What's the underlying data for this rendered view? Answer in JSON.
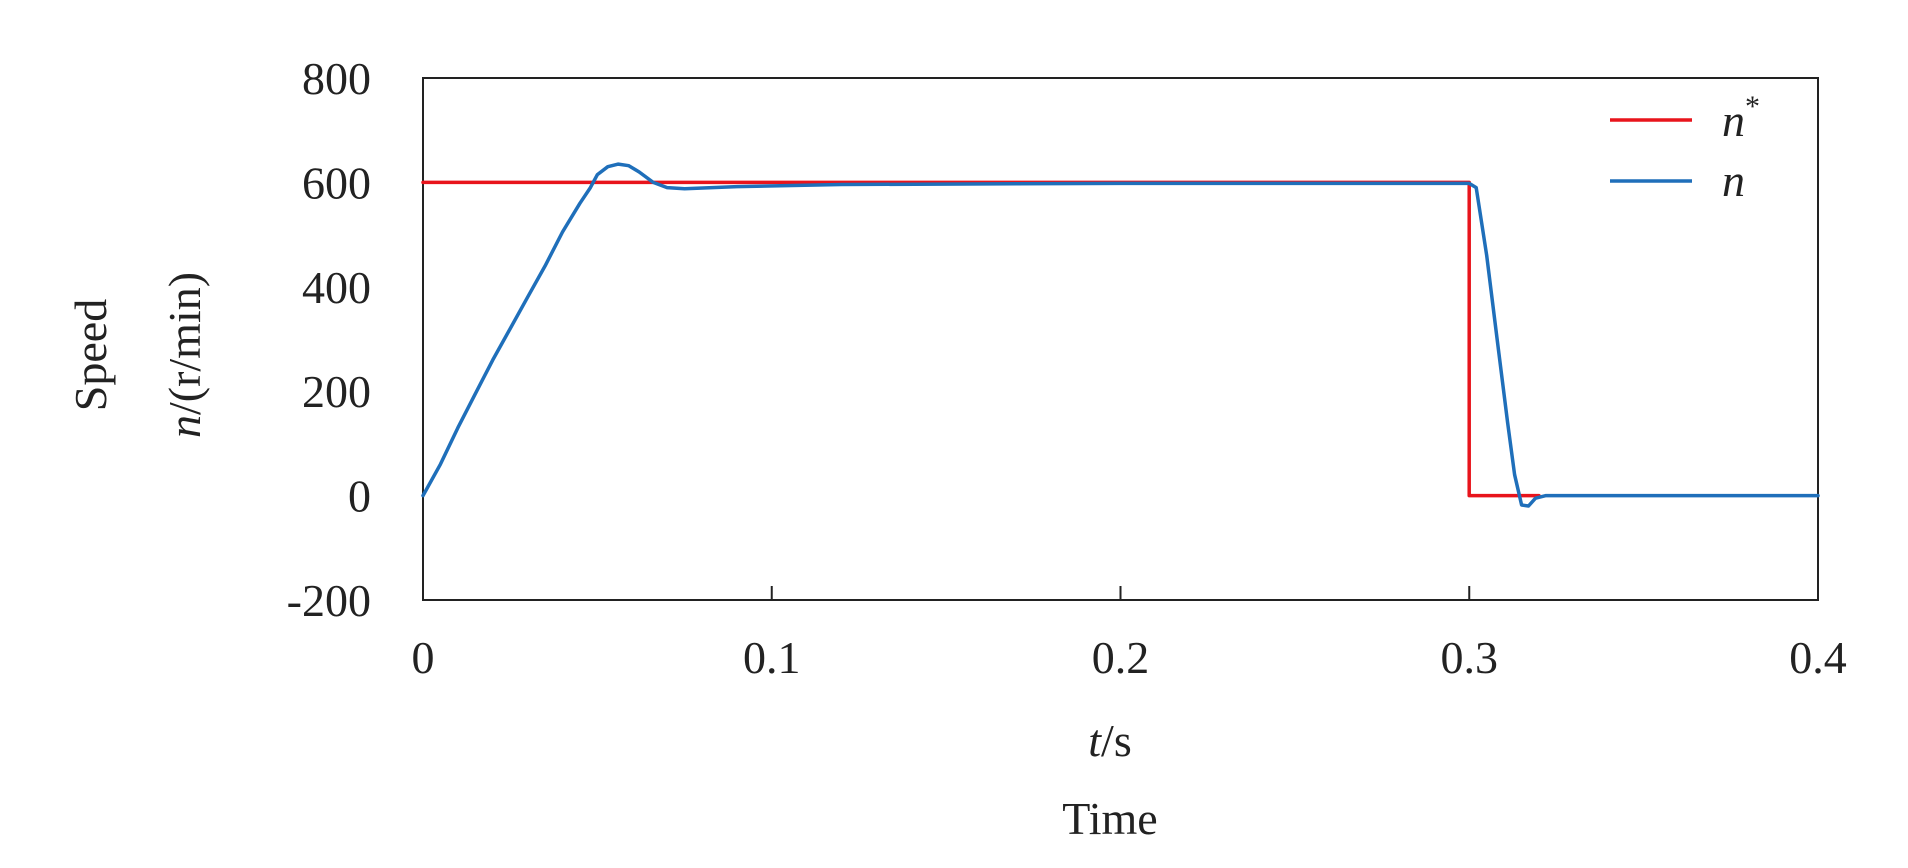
{
  "chart_data": {
    "type": "line",
    "xlabel_var": "t",
    "xlabel_unit": "/s",
    "xlabel_name": "Time",
    "ylabel_name": "Speed",
    "ylabel_var": "n",
    "ylabel_unit": "/(r/min)",
    "xlim": [
      0,
      0.4
    ],
    "ylim": [
      -200,
      800
    ],
    "xticks": [
      0,
      0.1,
      0.2,
      0.3,
      0.4
    ],
    "xtick_labels": [
      "0",
      "0.1",
      "0.2",
      "0.3",
      "0.4"
    ],
    "yticks": [
      800,
      600,
      400,
      200,
      0,
      -200
    ],
    "ytick_labels": [
      "800",
      "600",
      "400",
      "200",
      "0",
      "-200"
    ],
    "grid": false,
    "legend_position": "top-right",
    "series": [
      {
        "name": "n",
        "name_sup": "*",
        "color": "#e8141c",
        "x": [
          0,
          0.3,
          0.3,
          0.32
        ],
        "y": [
          600,
          600,
          0,
          0
        ]
      },
      {
        "name": "n",
        "name_sup": "",
        "color": "#1f6fba",
        "x": [
          0,
          0.005,
          0.01,
          0.015,
          0.02,
          0.025,
          0.03,
          0.035,
          0.04,
          0.045,
          0.048,
          0.05,
          0.053,
          0.056,
          0.059,
          0.062,
          0.066,
          0.07,
          0.075,
          0.09,
          0.12,
          0.2,
          0.3,
          0.302,
          0.305,
          0.308,
          0.311,
          0.313,
          0.315,
          0.317,
          0.319,
          0.322,
          0.33,
          0.4
        ],
        "y": [
          0,
          60,
          130,
          195,
          260,
          320,
          380,
          440,
          505,
          560,
          590,
          615,
          630,
          635,
          632,
          620,
          600,
          590,
          588,
          592,
          596,
          598,
          598,
          590,
          460,
          300,
          140,
          40,
          -18,
          -20,
          -5,
          0,
          0,
          0
        ]
      }
    ]
  }
}
